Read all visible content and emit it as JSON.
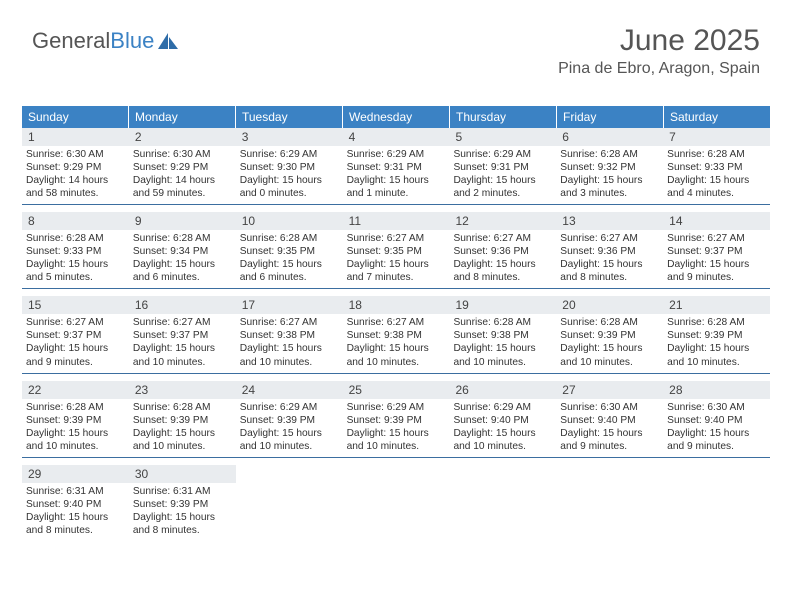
{
  "logo": {
    "text_gray": "General",
    "text_blue": "Blue"
  },
  "header": {
    "month_title": "June 2025",
    "location": "Pina de Ebro, Aragon, Spain"
  },
  "colors": {
    "header_bg": "#3b82c4",
    "header_text": "#ffffff",
    "daynum_bg": "#e9ecef",
    "week_border": "#3b6ea0",
    "title_color": "#555555",
    "body_text": "#333333"
  },
  "day_names": [
    "Sunday",
    "Monday",
    "Tuesday",
    "Wednesday",
    "Thursday",
    "Friday",
    "Saturday"
  ],
  "labels": {
    "sunrise": "Sunrise:",
    "sunset": "Sunset:",
    "daylight": "Daylight:"
  },
  "days": [
    {
      "n": 1,
      "sunrise": "6:30 AM",
      "sunset": "9:29 PM",
      "daylight": "14 hours and 58 minutes."
    },
    {
      "n": 2,
      "sunrise": "6:30 AM",
      "sunset": "9:29 PM",
      "daylight": "14 hours and 59 minutes."
    },
    {
      "n": 3,
      "sunrise": "6:29 AM",
      "sunset": "9:30 PM",
      "daylight": "15 hours and 0 minutes."
    },
    {
      "n": 4,
      "sunrise": "6:29 AM",
      "sunset": "9:31 PM",
      "daylight": "15 hours and 1 minute."
    },
    {
      "n": 5,
      "sunrise": "6:29 AM",
      "sunset": "9:31 PM",
      "daylight": "15 hours and 2 minutes."
    },
    {
      "n": 6,
      "sunrise": "6:28 AM",
      "sunset": "9:32 PM",
      "daylight": "15 hours and 3 minutes."
    },
    {
      "n": 7,
      "sunrise": "6:28 AM",
      "sunset": "9:33 PM",
      "daylight": "15 hours and 4 minutes."
    },
    {
      "n": 8,
      "sunrise": "6:28 AM",
      "sunset": "9:33 PM",
      "daylight": "15 hours and 5 minutes."
    },
    {
      "n": 9,
      "sunrise": "6:28 AM",
      "sunset": "9:34 PM",
      "daylight": "15 hours and 6 minutes."
    },
    {
      "n": 10,
      "sunrise": "6:28 AM",
      "sunset": "9:35 PM",
      "daylight": "15 hours and 6 minutes."
    },
    {
      "n": 11,
      "sunrise": "6:27 AM",
      "sunset": "9:35 PM",
      "daylight": "15 hours and 7 minutes."
    },
    {
      "n": 12,
      "sunrise": "6:27 AM",
      "sunset": "9:36 PM",
      "daylight": "15 hours and 8 minutes."
    },
    {
      "n": 13,
      "sunrise": "6:27 AM",
      "sunset": "9:36 PM",
      "daylight": "15 hours and 8 minutes."
    },
    {
      "n": 14,
      "sunrise": "6:27 AM",
      "sunset": "9:37 PM",
      "daylight": "15 hours and 9 minutes."
    },
    {
      "n": 15,
      "sunrise": "6:27 AM",
      "sunset": "9:37 PM",
      "daylight": "15 hours and 9 minutes."
    },
    {
      "n": 16,
      "sunrise": "6:27 AM",
      "sunset": "9:37 PM",
      "daylight": "15 hours and 10 minutes."
    },
    {
      "n": 17,
      "sunrise": "6:27 AM",
      "sunset": "9:38 PM",
      "daylight": "15 hours and 10 minutes."
    },
    {
      "n": 18,
      "sunrise": "6:27 AM",
      "sunset": "9:38 PM",
      "daylight": "15 hours and 10 minutes."
    },
    {
      "n": 19,
      "sunrise": "6:28 AM",
      "sunset": "9:38 PM",
      "daylight": "15 hours and 10 minutes."
    },
    {
      "n": 20,
      "sunrise": "6:28 AM",
      "sunset": "9:39 PM",
      "daylight": "15 hours and 10 minutes."
    },
    {
      "n": 21,
      "sunrise": "6:28 AM",
      "sunset": "9:39 PM",
      "daylight": "15 hours and 10 minutes."
    },
    {
      "n": 22,
      "sunrise": "6:28 AM",
      "sunset": "9:39 PM",
      "daylight": "15 hours and 10 minutes."
    },
    {
      "n": 23,
      "sunrise": "6:28 AM",
      "sunset": "9:39 PM",
      "daylight": "15 hours and 10 minutes."
    },
    {
      "n": 24,
      "sunrise": "6:29 AM",
      "sunset": "9:39 PM",
      "daylight": "15 hours and 10 minutes."
    },
    {
      "n": 25,
      "sunrise": "6:29 AM",
      "sunset": "9:39 PM",
      "daylight": "15 hours and 10 minutes."
    },
    {
      "n": 26,
      "sunrise": "6:29 AM",
      "sunset": "9:40 PM",
      "daylight": "15 hours and 10 minutes."
    },
    {
      "n": 27,
      "sunrise": "6:30 AM",
      "sunset": "9:40 PM",
      "daylight": "15 hours and 9 minutes."
    },
    {
      "n": 28,
      "sunrise": "6:30 AM",
      "sunset": "9:40 PM",
      "daylight": "15 hours and 9 minutes."
    },
    {
      "n": 29,
      "sunrise": "6:31 AM",
      "sunset": "9:40 PM",
      "daylight": "15 hours and 8 minutes."
    },
    {
      "n": 30,
      "sunrise": "6:31 AM",
      "sunset": "9:39 PM",
      "daylight": "15 hours and 8 minutes."
    }
  ],
  "layout": {
    "first_day_offset": 0,
    "total_days": 30,
    "columns": 7
  }
}
